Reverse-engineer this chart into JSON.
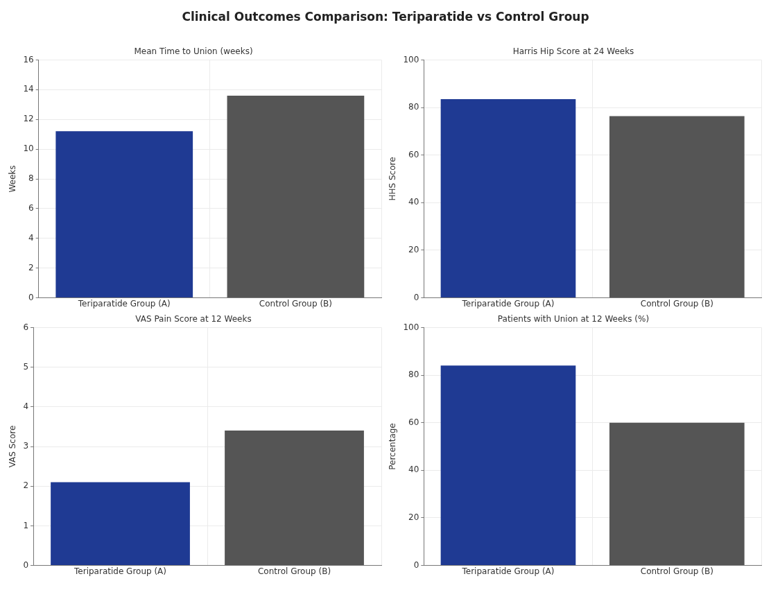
{
  "chart_data": [
    {
      "type": "bar",
      "title": "Mean Time to Union (weeks)",
      "ylabel": "Weeks",
      "annotations": [
        "Clinical Outcomes Comparison: Teriparatide vs Control Group"
      ],
      "categories": [
        "Teriparatide Group (A)",
        "Control Group (B)"
      ],
      "values": [
        11.2,
        13.6
      ],
      "colors": [
        "#1f3a93",
        "#555555"
      ],
      "ylim": [
        0,
        16
      ],
      "yticks": [
        0,
        2,
        4,
        6,
        8,
        10,
        12,
        14,
        16
      ],
      "grid": true
    },
    {
      "type": "bar",
      "title": "Harris Hip Score at 24 Weeks",
      "ylabel": "HHS Score",
      "categories": [
        "Teriparatide Group (A)",
        "Control Group (B)"
      ],
      "values": [
        83.5,
        76.4
      ],
      "colors": [
        "#1f3a93",
        "#555555"
      ],
      "ylim": [
        0,
        100
      ],
      "yticks": [
        0,
        20,
        40,
        60,
        80,
        100
      ],
      "grid": true
    },
    {
      "type": "bar",
      "title": "VAS Pain Score at 12 Weeks",
      "ylabel": "VAS Score",
      "categories": [
        "Teriparatide Group (A)",
        "Control Group (B)"
      ],
      "values": [
        2.1,
        3.4
      ],
      "colors": [
        "#1f3a93",
        "#555555"
      ],
      "ylim": [
        0,
        6
      ],
      "yticks": [
        0,
        1,
        2,
        3,
        4,
        5,
        6
      ],
      "grid": true
    },
    {
      "type": "bar",
      "title": "Patients with Union at 12 Weeks (%)",
      "ylabel": "Percentage",
      "categories": [
        "Teriparatide Group (A)",
        "Control Group (B)"
      ],
      "values": [
        84,
        60
      ],
      "colors": [
        "#1f3a93",
        "#555555"
      ],
      "ylim": [
        0,
        100
      ],
      "yticks": [
        0,
        20,
        40,
        60,
        80,
        100
      ],
      "grid": true
    }
  ]
}
